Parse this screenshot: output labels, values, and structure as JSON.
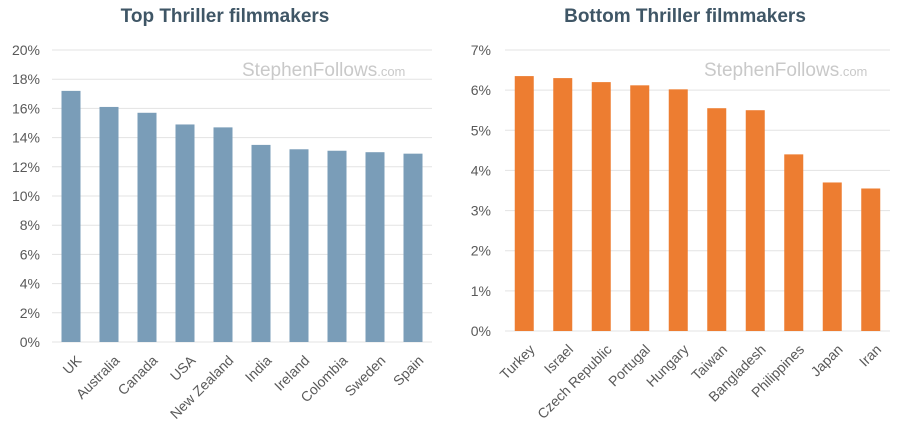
{
  "watermark": {
    "main": "StephenFollows",
    "suffix": ".com"
  },
  "chart_data": [
    {
      "type": "bar",
      "title": "Top Thriller filmmakers",
      "categories": [
        "UK",
        "Australia",
        "Canada",
        "USA",
        "New Zealand",
        "India",
        "Ireland",
        "Colombia",
        "Sweden",
        "Spain"
      ],
      "values": [
        17.2,
        16.1,
        15.7,
        14.9,
        14.7,
        13.5,
        13.2,
        13.1,
        13.0,
        12.9
      ],
      "ylim": [
        0,
        20
      ],
      "yticks": [
        0,
        2,
        4,
        6,
        8,
        10,
        12,
        14,
        16,
        18,
        20
      ],
      "ytick_labels": [
        "0%",
        "2%",
        "4%",
        "6%",
        "8%",
        "10%",
        "12%",
        "14%",
        "16%",
        "18%",
        "20%"
      ],
      "color": "#7a9db8",
      "grid": true,
      "xlabel": "",
      "ylabel": ""
    },
    {
      "type": "bar",
      "title": "Bottom Thriller filmmakers",
      "categories": [
        "Turkey",
        "Israel",
        "Czech Republic",
        "Portugal",
        "Hungary",
        "Taiwan",
        "Bangladesh",
        "Philippines",
        "Japan",
        "Iran"
      ],
      "values": [
        6.35,
        6.3,
        6.2,
        6.12,
        6.02,
        5.55,
        5.5,
        4.4,
        3.7,
        3.55
      ],
      "ylim": [
        0,
        7
      ],
      "yticks": [
        0,
        1,
        2,
        3,
        4,
        5,
        6,
        7
      ],
      "ytick_labels": [
        "0%",
        "1%",
        "2%",
        "3%",
        "4%",
        "5%",
        "6%",
        "7%"
      ],
      "color": "#ed7d31",
      "grid": true,
      "xlabel": "",
      "ylabel": ""
    }
  ]
}
